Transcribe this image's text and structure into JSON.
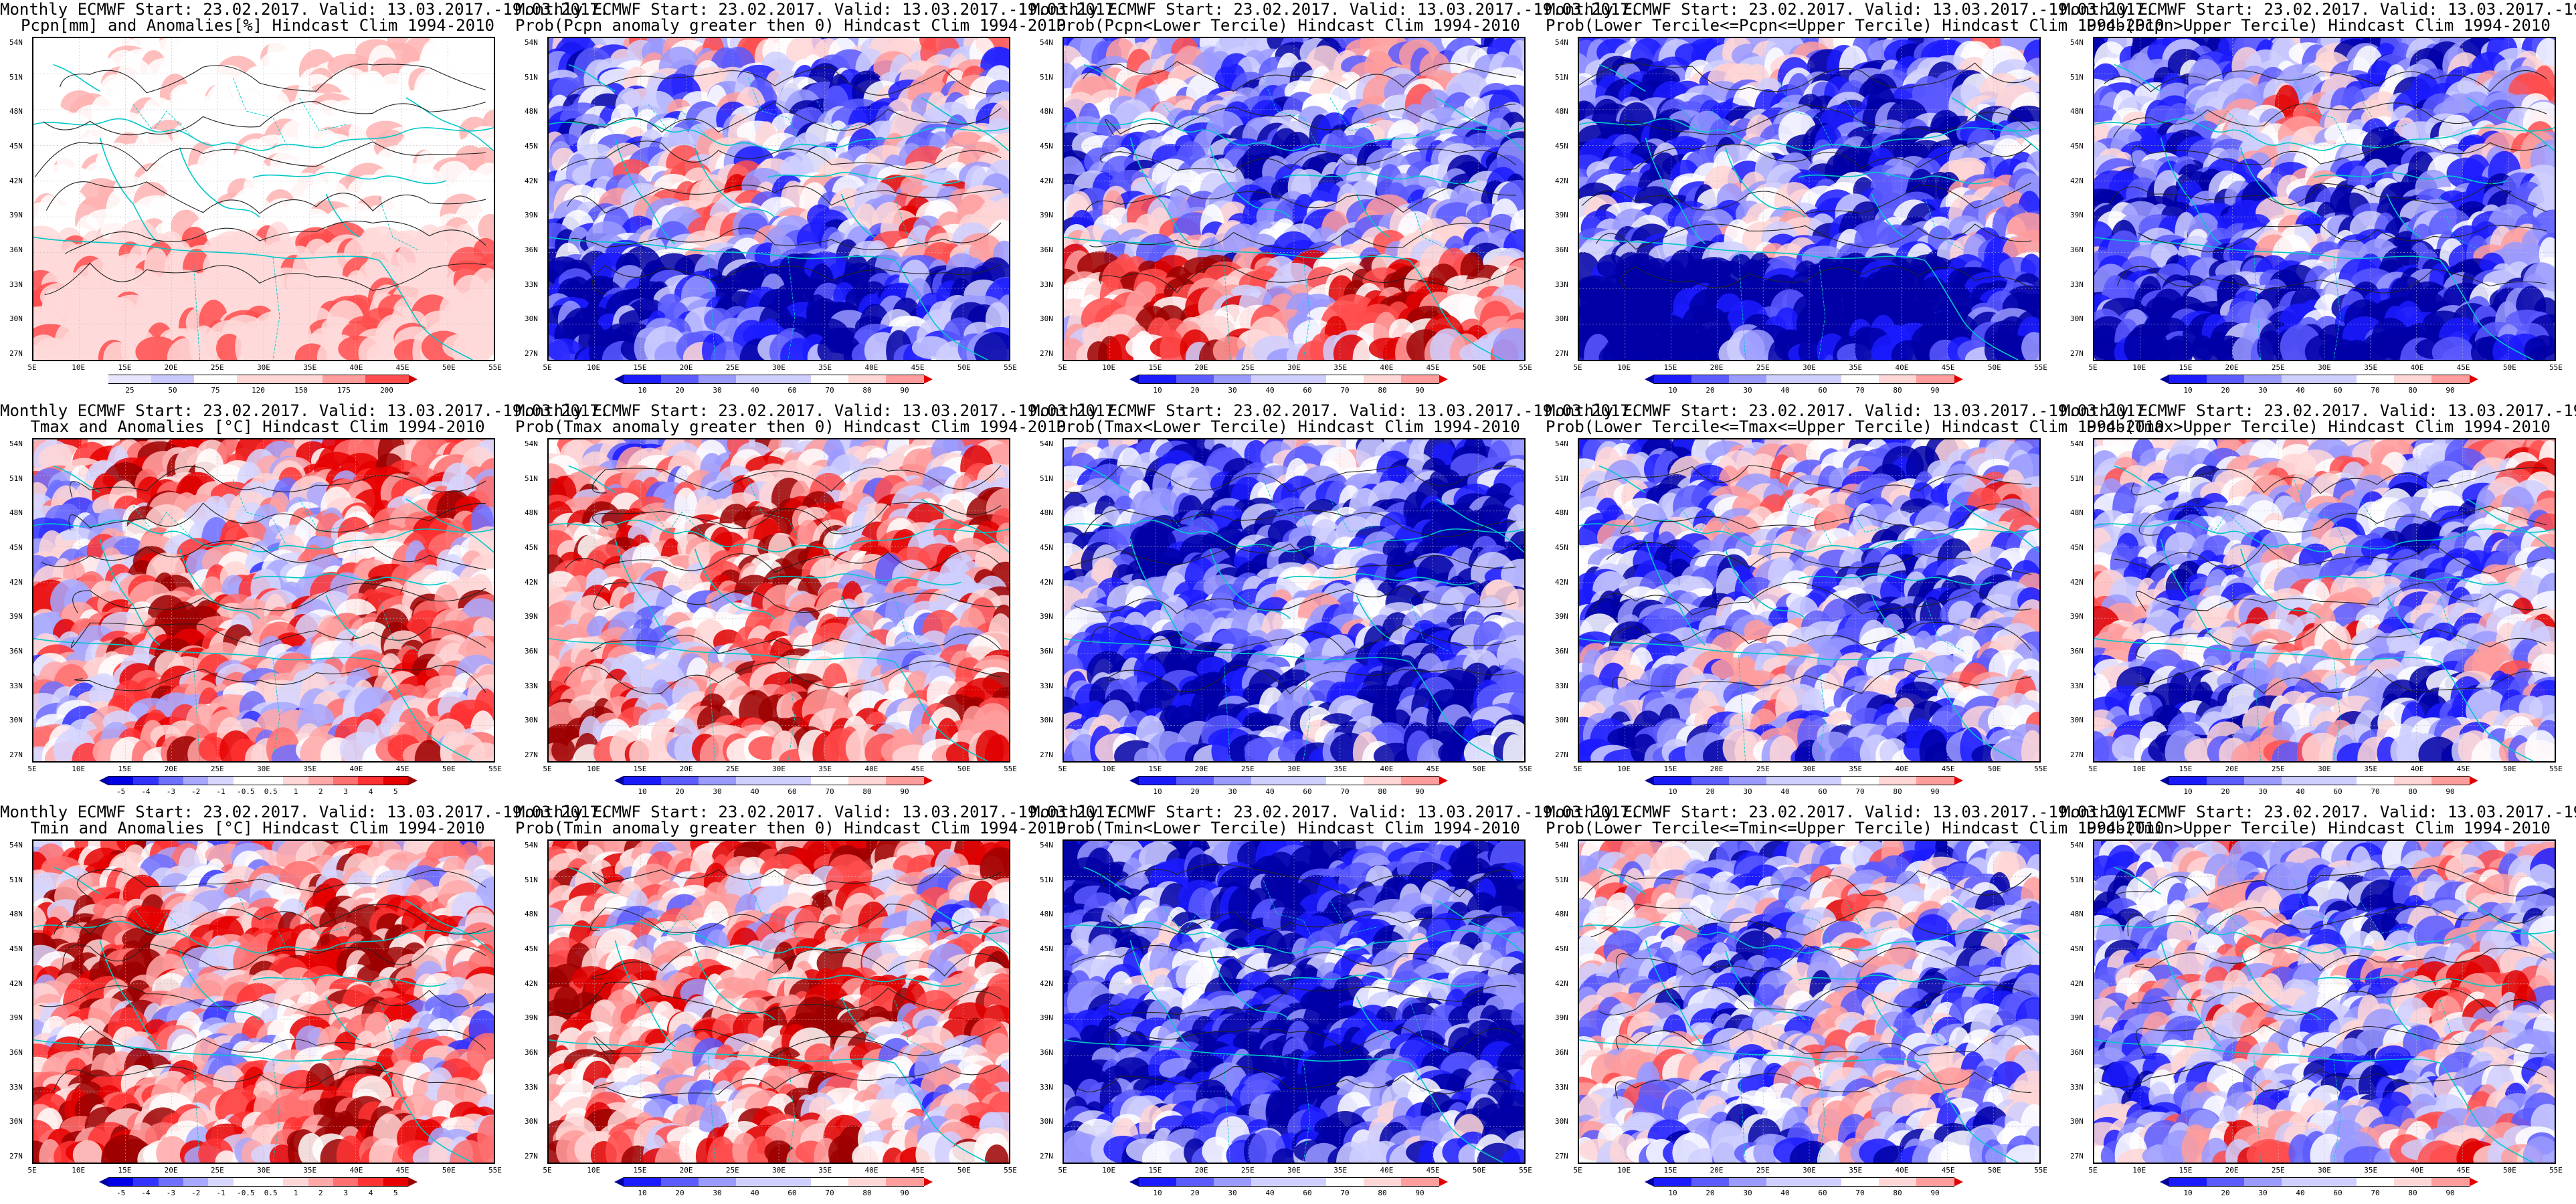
{
  "common": {
    "title_line1": "Monthly ECMWF Start: 23.02.2017. Valid: 13.03.2017.-19.03.2017.",
    "lat_labels": [
      "54N",
      "51N",
      "48N",
      "45N",
      "42N",
      "39N",
      "36N",
      "33N",
      "30N",
      "27N"
    ],
    "lon_labels": [
      "5E",
      "10E",
      "15E",
      "20E",
      "25E",
      "30E",
      "35E",
      "40E",
      "45E",
      "50E",
      "55E"
    ]
  },
  "palettes": {
    "prob": [
      "#0000a6",
      "#1b1bff",
      "#5b5bff",
      "#9a9aff",
      "#cfcfff",
      "#ffffff",
      "#ffd6d6",
      "#ff9c9c",
      "#ff4d4d",
      "#e00000",
      "#9c0000"
    ],
    "pcpn": [
      "#ffffff",
      "#ffd9d9",
      "#ffb3b3",
      "#ff8080",
      "#ff4d4d",
      "#e60000",
      "#b30000"
    ],
    "anom": [
      "#00009c",
      "#0000e6",
      "#3333ff",
      "#7070ff",
      "#a8a8ff",
      "#d6d6ff",
      "#ffffff",
      "#ffd6d6",
      "#ffa8a8",
      "#ff7070",
      "#ff3333",
      "#e60000",
      "#9c0000"
    ]
  },
  "colorbars": {
    "pcpn": [
      "25",
      "50",
      "75",
      "120",
      "150",
      "175",
      "200"
    ],
    "prob": [
      "10",
      "20",
      "30",
      "40",
      "60",
      "70",
      "80",
      "90"
    ],
    "anom": [
      "-5",
      "-4",
      "-3",
      "-2",
      "-1",
      "-0.5",
      "0.5",
      "1",
      "2",
      "3",
      "4",
      "5"
    ]
  },
  "panels": [
    {
      "row": 0,
      "col": 0,
      "title2": "Pcpn[mm] and Anomalies[%] Hindcast Clim 1994-2010",
      "scheme": "pcpn",
      "bar": "pcpn",
      "bias": 0.0,
      "seed": 11
    },
    {
      "row": 0,
      "col": 1,
      "title2": "Prob(Pcpn anomaly greater then 0) Hindcast Clim 1994-2010",
      "scheme": "prob",
      "bar": "prob",
      "bias": -0.15,
      "seed": 23
    },
    {
      "row": 0,
      "col": 2,
      "title2": "Prob(Pcpn<Lower Tercile) Hindcast Clim 1994-2010",
      "scheme": "prob",
      "bar": "prob",
      "bias": -0.4,
      "seed": 37
    },
    {
      "row": 0,
      "col": 3,
      "title2": "Prob(Lower Tercile<=Pcpn<=Upper Tercile) Hindcast Clim 1994-2010",
      "scheme": "prob",
      "bar": "prob",
      "bias": -0.5,
      "seed": 41
    },
    {
      "row": 0,
      "col": 4,
      "title2": "Prob(Pcpn>Upper Tercile) Hindcast Clim 1994-2010",
      "scheme": "prob",
      "bar": "prob",
      "bias": -0.35,
      "seed": 53
    },
    {
      "row": 1,
      "col": 0,
      "title2": "Tmax and Anomalies [°C] Hindcast Clim 1994-2010",
      "scheme": "anom",
      "bar": "anom",
      "bias": 0.25,
      "seed": 61
    },
    {
      "row": 1,
      "col": 1,
      "title2": "Prob(Tmax anomaly greater then 0) Hindcast Clim 1994-2010",
      "scheme": "prob",
      "bar": "prob",
      "bias": 0.3,
      "seed": 71
    },
    {
      "row": 1,
      "col": 2,
      "title2": "Prob(Tmax<Lower Tercile) Hindcast Clim 1994-2010",
      "scheme": "prob",
      "bar": "prob",
      "bias": -0.6,
      "seed": 83
    },
    {
      "row": 1,
      "col": 3,
      "title2": "Prob(Lower Tercile<=Tmax<=Upper Tercile) Hindcast Clim 1994-2010",
      "scheme": "prob",
      "bar": "prob",
      "bias": -0.3,
      "seed": 97
    },
    {
      "row": 1,
      "col": 4,
      "title2": "Prob(Tmax>Upper Tercile) Hindcast Clim 1994-2010",
      "scheme": "prob",
      "bar": "prob",
      "bias": -0.2,
      "seed": 103
    },
    {
      "row": 2,
      "col": 0,
      "title2": "Tmin and Anomalies [°C] Hindcast Clim 1994-2010",
      "scheme": "anom",
      "bar": "anom",
      "bias": 0.35,
      "seed": 113
    },
    {
      "row": 2,
      "col": 1,
      "title2": "Prob(Tmin anomaly greater then 0) Hindcast Clim 1994-2010",
      "scheme": "prob",
      "bar": "prob",
      "bias": 0.35,
      "seed": 127
    },
    {
      "row": 2,
      "col": 2,
      "title2": "Prob(Tmin<Lower Tercile) Hindcast Clim 1994-2010",
      "scheme": "prob",
      "bar": "prob",
      "bias": -0.75,
      "seed": 131
    },
    {
      "row": 2,
      "col": 3,
      "title2": "Prob(Lower Tercile<=Tmin<=Upper Tercile) Hindcast Clim 1994-2010",
      "scheme": "prob",
      "bar": "prob",
      "bias": -0.25,
      "seed": 139
    },
    {
      "row": 2,
      "col": 4,
      "title2": "Prob(Tmin>Upper Tercile) Hindcast Clim 1994-2010",
      "scheme": "prob",
      "bar": "prob",
      "bias": -0.15,
      "seed": 149
    }
  ]
}
